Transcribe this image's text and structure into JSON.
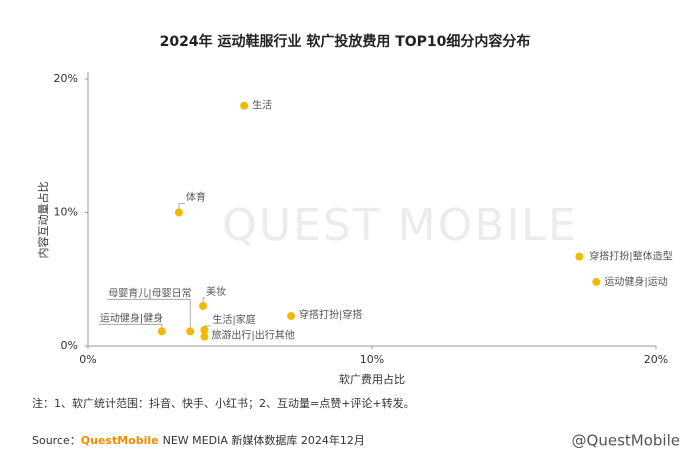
{
  "chart_data": {
    "type": "scatter",
    "title": "2024年 运动鞋服行业 软广投放费用 TOP10细分内容分布",
    "xlabel": "软广费用占比",
    "ylabel": "内容互动量占比",
    "watermark": "QUEST MOBILE",
    "color": "#f5b800",
    "xlim": [
      0,
      20
    ],
    "ylim": [
      0,
      20
    ],
    "xticks": [
      {
        "value": 0,
        "label": "0%"
      },
      {
        "value": 10,
        "label": "10%"
      },
      {
        "value": 20,
        "label": "20%"
      }
    ],
    "yticks": [
      {
        "value": 0,
        "label": "0%"
      },
      {
        "value": 10,
        "label": "10%"
      },
      {
        "value": 20,
        "label": "20%"
      }
    ],
    "labels": [
      "生活",
      "体育",
      "美妆",
      "母婴育儿|母婴日常",
      "运动健身|健身",
      "生活|家庭",
      "旅游出行|出行其他",
      "穿搭打扮|穿搭",
      "穿搭打扮|整体造型",
      "运动健身|运动"
    ],
    "x": [
      5.5,
      3.2,
      4.05,
      3.6,
      2.6,
      4.1,
      4.1,
      7.15,
      17.3,
      17.9
    ],
    "y": [
      18.0,
      10.0,
      3.0,
      1.1,
      1.1,
      1.2,
      0.7,
      2.25,
      6.7,
      4.8
    ]
  },
  "note": "注：1、软广统计范围：抖音、快手、小红书；2、互动量=点赞+评论+转发。",
  "source": {
    "prefix": "Source：",
    "brand": "QuestMobile",
    "rest": "NEW MEDIA 新媒体数据库 2024年12月"
  },
  "footer_watermark": "@QuestMobile"
}
